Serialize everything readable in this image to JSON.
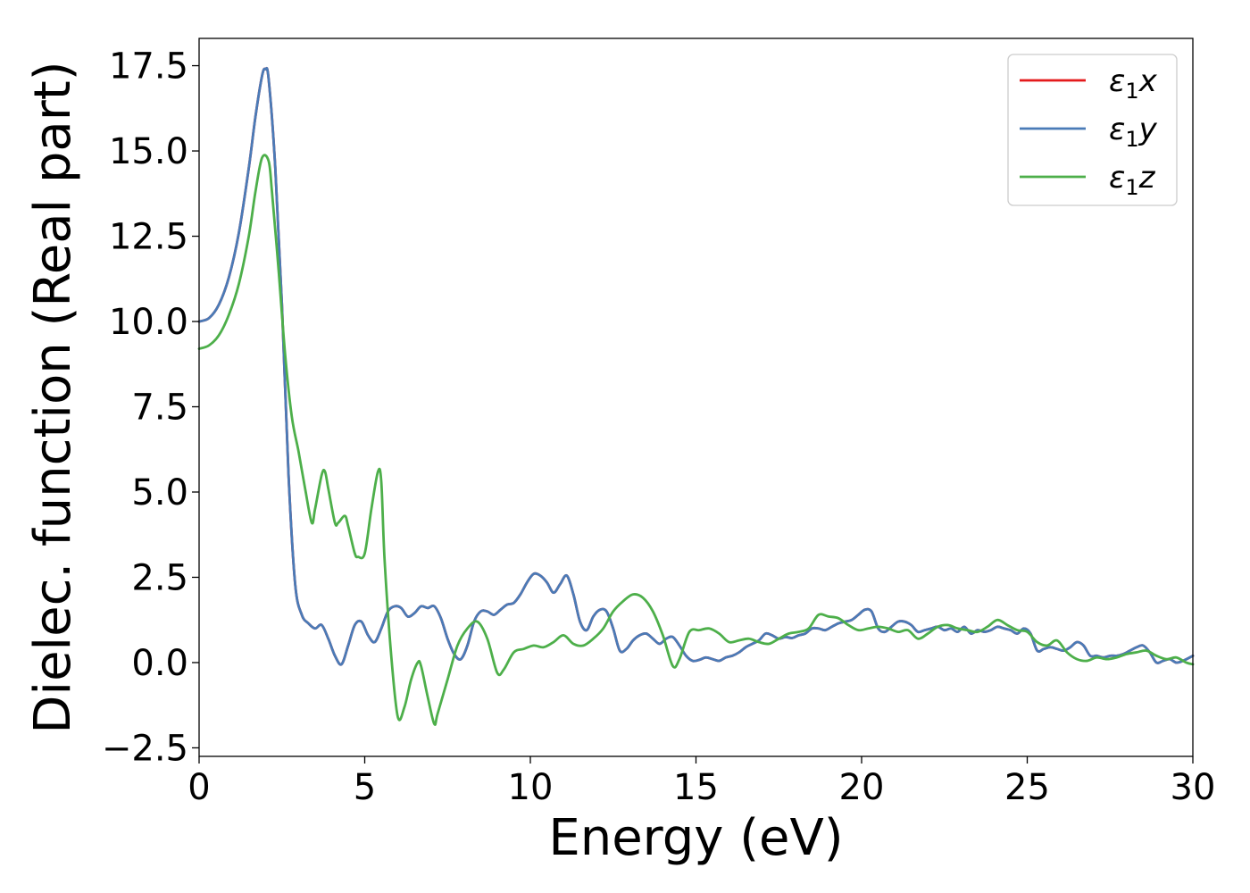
{
  "chart_data": {
    "type": "line",
    "xlabel": "Energy (eV)",
    "ylabel": "Dielec. function (Real part)",
    "xlim": [
      0,
      30
    ],
    "ylim": [
      -2.75,
      18.3
    ],
    "xticks": [
      0,
      5,
      10,
      15,
      20,
      25,
      30
    ],
    "xtick_labels": [
      "0",
      "5",
      "10",
      "15",
      "20",
      "25",
      "30"
    ],
    "yticks": [
      -2.5,
      0.0,
      2.5,
      5.0,
      7.5,
      10.0,
      12.5,
      15.0,
      17.5
    ],
    "ytick_labels": [
      "−2.5",
      "0.0",
      "2.5",
      "5.0",
      "7.5",
      "10.0",
      "12.5",
      "15.0",
      "17.5"
    ],
    "grid": false,
    "legend_position": "top-right",
    "series": [
      {
        "name": "ε₁x",
        "name_parts": [
          "ε",
          "1",
          "x"
        ],
        "color": "#e41a1c",
        "x": [
          0,
          0.3,
          0.6,
          0.9,
          1.2,
          1.5,
          1.7,
          1.9,
          2.0,
          2.1,
          2.3,
          2.5,
          2.7,
          2.9,
          3.1,
          3.3,
          3.5,
          3.7,
          3.9,
          4.1,
          4.3,
          4.5,
          4.7,
          4.9,
          5.1,
          5.3,
          5.5,
          5.7,
          5.9,
          6.1,
          6.3,
          6.5,
          6.7,
          6.9,
          7.1,
          7.3,
          7.5,
          7.7,
          7.9,
          8.1,
          8.3,
          8.5,
          8.7,
          8.9,
          9.1,
          9.3,
          9.5,
          9.7,
          9.9,
          10.1,
          10.3,
          10.5,
          10.7,
          10.9,
          11.1,
          11.3,
          11.5,
          11.7,
          11.9,
          12.1,
          12.3,
          12.5,
          12.7,
          12.9,
          13.1,
          13.3,
          13.5,
          13.7,
          13.9,
          14.1,
          14.3,
          14.5,
          14.7,
          14.9,
          15.1,
          15.3,
          15.5,
          15.7,
          15.9,
          16.1,
          16.3,
          16.5,
          16.7,
          16.9,
          17.1,
          17.3,
          17.5,
          17.7,
          17.9,
          18.1,
          18.3,
          18.5,
          18.7,
          18.9,
          19.1,
          19.3,
          19.5,
          19.7,
          19.9,
          20.1,
          20.3,
          20.5,
          20.7,
          20.9,
          21.1,
          21.3,
          21.5,
          21.7,
          21.9,
          22.1,
          22.3,
          22.5,
          22.7,
          22.9,
          23.1,
          23.3,
          23.5,
          23.7,
          23.9,
          24.1,
          24.3,
          24.5,
          24.7,
          24.9,
          25.1,
          25.3,
          25.5,
          25.7,
          25.9,
          26.1,
          26.3,
          26.5,
          26.7,
          26.9,
          27.1,
          27.3,
          27.5,
          27.7,
          27.9,
          28.1,
          28.3,
          28.5,
          28.7,
          28.9,
          29.1,
          29.3,
          29.5,
          29.7,
          30.0
        ],
        "y": [
          10.0,
          10.1,
          10.5,
          11.3,
          12.6,
          14.5,
          16.0,
          17.2,
          17.4,
          17.1,
          14.5,
          10.5,
          5.5,
          2.3,
          1.4,
          1.15,
          1.0,
          1.1,
          0.7,
          0.2,
          -0.05,
          0.5,
          1.1,
          1.2,
          0.8,
          0.6,
          1.0,
          1.5,
          1.65,
          1.6,
          1.35,
          1.45,
          1.65,
          1.6,
          1.65,
          1.3,
          0.7,
          0.25,
          0.1,
          0.5,
          1.2,
          1.5,
          1.5,
          1.4,
          1.55,
          1.7,
          1.75,
          2.0,
          2.35,
          2.6,
          2.55,
          2.35,
          2.05,
          2.3,
          2.55,
          2.0,
          1.2,
          0.95,
          1.35,
          1.55,
          1.5,
          1.0,
          0.35,
          0.4,
          0.65,
          0.8,
          0.85,
          0.7,
          0.55,
          0.7,
          0.75,
          0.5,
          0.2,
          0.05,
          0.08,
          0.15,
          0.1,
          0.05,
          0.15,
          0.2,
          0.3,
          0.45,
          0.55,
          0.65,
          0.85,
          0.8,
          0.7,
          0.75,
          0.72,
          0.8,
          0.85,
          1.0,
          1.0,
          0.95,
          1.05,
          1.15,
          1.2,
          1.25,
          1.4,
          1.55,
          1.5,
          1.0,
          0.9,
          1.05,
          1.2,
          1.2,
          1.1,
          0.9,
          0.95,
          1.0,
          1.05,
          0.95,
          1.0,
          0.9,
          1.05,
          0.85,
          0.95,
          0.9,
          0.95,
          1.05,
          1.0,
          0.95,
          0.85,
          1.0,
          0.85,
          0.35,
          0.4,
          0.45,
          0.4,
          0.35,
          0.45,
          0.6,
          0.5,
          0.2,
          0.2,
          0.15,
          0.2,
          0.2,
          0.25,
          0.35,
          0.45,
          0.5,
          0.3,
          0.0,
          0.05,
          0.1,
          0.0,
          0.05,
          0.2
        ]
      },
      {
        "name": "ε₁y",
        "name_parts": [
          "ε",
          "1",
          "y"
        ],
        "color": "#4a7bb7",
        "x": [
          0,
          0.3,
          0.6,
          0.9,
          1.2,
          1.5,
          1.7,
          1.9,
          2.0,
          2.1,
          2.3,
          2.5,
          2.7,
          2.9,
          3.1,
          3.3,
          3.5,
          3.7,
          3.9,
          4.1,
          4.3,
          4.5,
          4.7,
          4.9,
          5.1,
          5.3,
          5.5,
          5.7,
          5.9,
          6.1,
          6.3,
          6.5,
          6.7,
          6.9,
          7.1,
          7.3,
          7.5,
          7.7,
          7.9,
          8.1,
          8.3,
          8.5,
          8.7,
          8.9,
          9.1,
          9.3,
          9.5,
          9.7,
          9.9,
          10.1,
          10.3,
          10.5,
          10.7,
          10.9,
          11.1,
          11.3,
          11.5,
          11.7,
          11.9,
          12.1,
          12.3,
          12.5,
          12.7,
          12.9,
          13.1,
          13.3,
          13.5,
          13.7,
          13.9,
          14.1,
          14.3,
          14.5,
          14.7,
          14.9,
          15.1,
          15.3,
          15.5,
          15.7,
          15.9,
          16.1,
          16.3,
          16.5,
          16.7,
          16.9,
          17.1,
          17.3,
          17.5,
          17.7,
          17.9,
          18.1,
          18.3,
          18.5,
          18.7,
          18.9,
          19.1,
          19.3,
          19.5,
          19.7,
          19.9,
          20.1,
          20.3,
          20.5,
          20.7,
          20.9,
          21.1,
          21.3,
          21.5,
          21.7,
          21.9,
          22.1,
          22.3,
          22.5,
          22.7,
          22.9,
          23.1,
          23.3,
          23.5,
          23.7,
          23.9,
          24.1,
          24.3,
          24.5,
          24.7,
          24.9,
          25.1,
          25.3,
          25.5,
          25.7,
          25.9,
          26.1,
          26.3,
          26.5,
          26.7,
          26.9,
          27.1,
          27.3,
          27.5,
          27.7,
          27.9,
          28.1,
          28.3,
          28.5,
          28.7,
          28.9,
          29.1,
          29.3,
          29.5,
          29.7,
          30.0
        ],
        "y": [
          10.0,
          10.1,
          10.5,
          11.3,
          12.6,
          14.5,
          16.0,
          17.2,
          17.4,
          17.1,
          14.5,
          10.5,
          5.5,
          2.3,
          1.4,
          1.15,
          1.0,
          1.1,
          0.7,
          0.2,
          -0.05,
          0.5,
          1.1,
          1.2,
          0.8,
          0.6,
          1.0,
          1.5,
          1.65,
          1.6,
          1.35,
          1.45,
          1.65,
          1.6,
          1.65,
          1.3,
          0.7,
          0.25,
          0.1,
          0.5,
          1.2,
          1.5,
          1.5,
          1.4,
          1.55,
          1.7,
          1.75,
          2.0,
          2.35,
          2.6,
          2.55,
          2.35,
          2.05,
          2.3,
          2.55,
          2.0,
          1.2,
          0.95,
          1.35,
          1.55,
          1.5,
          1.0,
          0.35,
          0.4,
          0.65,
          0.8,
          0.85,
          0.7,
          0.55,
          0.7,
          0.75,
          0.5,
          0.2,
          0.05,
          0.08,
          0.15,
          0.1,
          0.05,
          0.15,
          0.2,
          0.3,
          0.45,
          0.55,
          0.65,
          0.85,
          0.8,
          0.7,
          0.75,
          0.72,
          0.8,
          0.85,
          1.0,
          1.0,
          0.95,
          1.05,
          1.15,
          1.2,
          1.25,
          1.4,
          1.55,
          1.5,
          1.0,
          0.9,
          1.05,
          1.2,
          1.2,
          1.1,
          0.9,
          0.95,
          1.0,
          1.05,
          0.95,
          1.0,
          0.9,
          1.05,
          0.85,
          0.95,
          0.9,
          0.95,
          1.05,
          1.0,
          0.95,
          0.85,
          1.0,
          0.85,
          0.35,
          0.4,
          0.45,
          0.4,
          0.35,
          0.45,
          0.6,
          0.5,
          0.2,
          0.2,
          0.15,
          0.2,
          0.2,
          0.25,
          0.35,
          0.45,
          0.5,
          0.3,
          0.0,
          0.05,
          0.1,
          0.0,
          0.05,
          0.2
        ]
      },
      {
        "name": "ε₁z",
        "name_parts": [
          "ε",
          "1",
          "z"
        ],
        "color": "#4daf4a",
        "x": [
          0,
          0.3,
          0.6,
          0.9,
          1.2,
          1.5,
          1.7,
          1.9,
          2.1,
          2.2,
          2.4,
          2.6,
          2.8,
          3.0,
          3.2,
          3.4,
          3.5,
          3.7,
          3.8,
          3.9,
          4.1,
          4.2,
          4.4,
          4.5,
          4.7,
          4.8,
          5.0,
          5.2,
          5.4,
          5.5,
          5.6,
          5.8,
          6.0,
          6.2,
          6.4,
          6.6,
          6.7,
          6.9,
          7.1,
          7.2,
          7.5,
          7.8,
          8.1,
          8.4,
          8.7,
          9.0,
          9.2,
          9.5,
          9.8,
          10.1,
          10.4,
          10.7,
          11.0,
          11.3,
          11.6,
          11.9,
          12.2,
          12.5,
          12.8,
          13.1,
          13.4,
          13.7,
          14.0,
          14.3,
          14.5,
          14.8,
          15.1,
          15.4,
          15.7,
          16.0,
          16.3,
          16.6,
          16.9,
          17.2,
          17.5,
          17.8,
          18.1,
          18.4,
          18.7,
          19.0,
          19.3,
          19.6,
          19.9,
          20.2,
          20.5,
          20.8,
          21.1,
          21.4,
          21.7,
          22.0,
          22.3,
          22.6,
          22.9,
          23.2,
          23.5,
          23.8,
          24.1,
          24.4,
          24.7,
          25.0,
          25.3,
          25.6,
          25.9,
          26.2,
          26.5,
          26.8,
          27.1,
          27.4,
          27.7,
          28.0,
          28.3,
          28.6,
          28.9,
          29.2,
          29.5,
          29.8,
          30.0
        ],
        "y": [
          9.2,
          9.3,
          9.6,
          10.2,
          11.1,
          12.5,
          13.8,
          14.8,
          14.7,
          13.8,
          11.5,
          9.0,
          7.2,
          6.2,
          5.1,
          4.1,
          4.5,
          5.5,
          5.6,
          5.1,
          4.1,
          4.1,
          4.3,
          4.0,
          3.2,
          3.1,
          3.2,
          4.5,
          5.6,
          5.3,
          3.0,
          0.2,
          -1.6,
          -1.3,
          -0.5,
          0.0,
          -0.1,
          -1.0,
          -1.8,
          -1.5,
          -0.5,
          0.5,
          1.0,
          1.2,
          0.7,
          -0.3,
          -0.2,
          0.3,
          0.4,
          0.5,
          0.45,
          0.6,
          0.8,
          0.55,
          0.5,
          0.7,
          1.0,
          1.5,
          1.8,
          2.0,
          1.9,
          1.5,
          0.8,
          -0.1,
          0.1,
          0.9,
          0.95,
          1.0,
          0.85,
          0.6,
          0.65,
          0.7,
          0.6,
          0.55,
          0.7,
          0.85,
          0.9,
          1.0,
          1.4,
          1.35,
          1.3,
          1.1,
          0.95,
          1.0,
          1.05,
          1.0,
          0.9,
          0.95,
          0.7,
          0.85,
          1.05,
          1.1,
          1.0,
          0.95,
          0.9,
          1.05,
          1.25,
          1.1,
          0.95,
          0.9,
          0.6,
          0.5,
          0.65,
          0.3,
          0.1,
          0.05,
          0.15,
          0.1,
          0.15,
          0.25,
          0.3,
          0.35,
          0.2,
          0.1,
          0.15,
          0.0,
          -0.05
        ]
      }
    ]
  }
}
